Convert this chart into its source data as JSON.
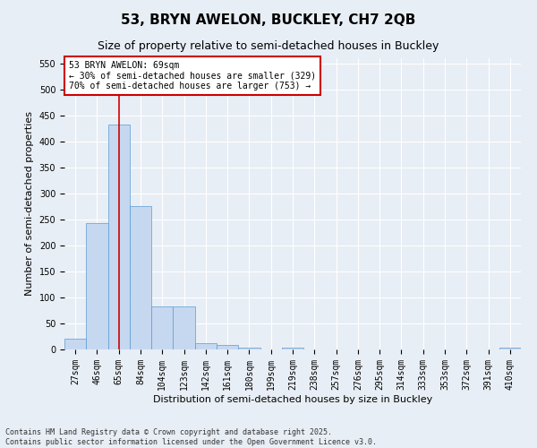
{
  "title1": "53, BRYN AWELON, BUCKLEY, CH7 2QB",
  "title2": "Size of property relative to semi-detached houses in Buckley",
  "xlabel": "Distribution of semi-detached houses by size in Buckley",
  "ylabel": "Number of semi-detached properties",
  "categories": [
    "27sqm",
    "46sqm",
    "65sqm",
    "84sqm",
    "104sqm",
    "123sqm",
    "142sqm",
    "161sqm",
    "180sqm",
    "199sqm",
    "219sqm",
    "238sqm",
    "257sqm",
    "276sqm",
    "295sqm",
    "314sqm",
    "333sqm",
    "353sqm",
    "372sqm",
    "391sqm",
    "410sqm"
  ],
  "values": [
    20,
    243,
    433,
    275,
    83,
    83,
    12,
    8,
    4,
    0,
    4,
    0,
    0,
    0,
    0,
    0,
    0,
    0,
    0,
    0,
    4
  ],
  "bar_color": "#c5d8f0",
  "bar_edge_color": "#5b9bd5",
  "vline_x": 2,
  "vline_color": "#cc0000",
  "annotation_text": "53 BRYN AWELON: 69sqm\n← 30% of semi-detached houses are smaller (329)\n70% of semi-detached houses are larger (753) →",
  "annotation_box_color": "#ffffff",
  "annotation_box_edge": "#cc0000",
  "ylim": [
    0,
    560
  ],
  "yticks": [
    0,
    50,
    100,
    150,
    200,
    250,
    300,
    350,
    400,
    450,
    500,
    550
  ],
  "footnote1": "Contains HM Land Registry data © Crown copyright and database right 2025.",
  "footnote2": "Contains public sector information licensed under the Open Government Licence v3.0.",
  "bg_color": "#e8eef5",
  "plot_bg_color": "#e8eef5",
  "grid_color": "#ffffff",
  "title1_fontsize": 11,
  "title2_fontsize": 9,
  "axis_label_fontsize": 8,
  "tick_fontsize": 7,
  "annotation_fontsize": 7,
  "footnote_fontsize": 6
}
